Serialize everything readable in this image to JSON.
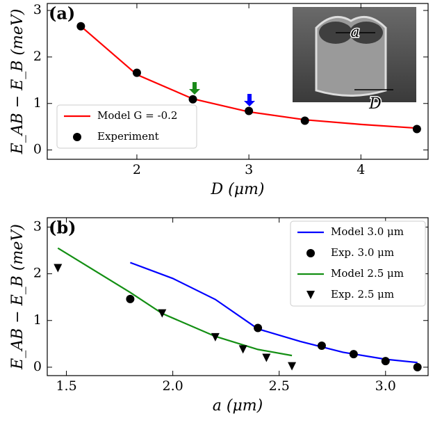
{
  "chart_data": [
    {
      "type": "line",
      "panel_label": "(a)",
      "x_label": "D (μm)",
      "y_label": "E_AB − E_B (meV)",
      "xlim": [
        1.2,
        4.6
      ],
      "ylim": [
        -0.2,
        3.15
      ],
      "xticks": [
        2,
        3,
        4
      ],
      "yticks": [
        0,
        1,
        2,
        3
      ],
      "legend": "lower left",
      "annotations": [
        "a",
        "D"
      ],
      "series": [
        {
          "name": "Model G = -0.2",
          "color": "#ff0000",
          "marker": "line",
          "x": [
            1.5,
            2,
            2.5,
            3,
            3.5,
            4,
            4.5
          ],
          "values": [
            2.66,
            1.62,
            1.1,
            0.82,
            0.65,
            0.55,
            0.47
          ]
        },
        {
          "name": "Experiment",
          "color": "#000000",
          "marker": "circle",
          "x": [
            1.5,
            2,
            2.5,
            3,
            3.5,
            4.5
          ],
          "values": [
            2.66,
            1.66,
            1.09,
            0.84,
            0.63,
            0.45
          ]
        }
      ]
    },
    {
      "type": "line",
      "panel_label": "(b)",
      "x_label": "a (μm)",
      "y_label": "E_AB − E_B (meV)",
      "xlim": [
        1.41,
        3.2
      ],
      "ylim": [
        -0.18,
        3.2
      ],
      "xticks": [
        1.5,
        {
          "value": 2,
          "label": "2.0"
        },
        2.5,
        {
          "value": 3,
          "label": "3.0"
        }
      ],
      "yticks": [
        0,
        1,
        2,
        3
      ],
      "legend": "upper right",
      "series": [
        {
          "name": "Model 3.0 μm",
          "color": "#0000ff",
          "marker": "line",
          "x": [
            1.8,
            2.0,
            2.2,
            2.4,
            2.6,
            2.8,
            3.0,
            3.15
          ],
          "values": [
            2.24,
            1.9,
            1.45,
            0.82,
            0.55,
            0.32,
            0.17,
            0.1
          ]
        },
        {
          "name": "Exp. 3.0 μm",
          "color": "#000000",
          "marker": "circle",
          "x": [
            1.8,
            2.4,
            2.7,
            2.85,
            3.0,
            3.15
          ],
          "values": [
            1.46,
            0.84,
            0.46,
            0.28,
            0.13,
            0.0
          ]
        },
        {
          "name": "Model 2.5 μm",
          "color": "#138f13",
          "marker": "line",
          "x": [
            1.46,
            1.8,
            1.95,
            2.2,
            2.4,
            2.56
          ],
          "values": [
            2.55,
            1.6,
            1.15,
            0.66,
            0.38,
            0.25
          ]
        },
        {
          "name": "Exp. 2.5 μm",
          "color": "#000000",
          "marker": "triangle",
          "x": [
            1.46,
            1.95,
            2.2,
            2.33,
            2.44,
            2.56
          ],
          "values": [
            2.12,
            1.15,
            0.64,
            0.38,
            0.2,
            0.02
          ]
        }
      ]
    }
  ]
}
